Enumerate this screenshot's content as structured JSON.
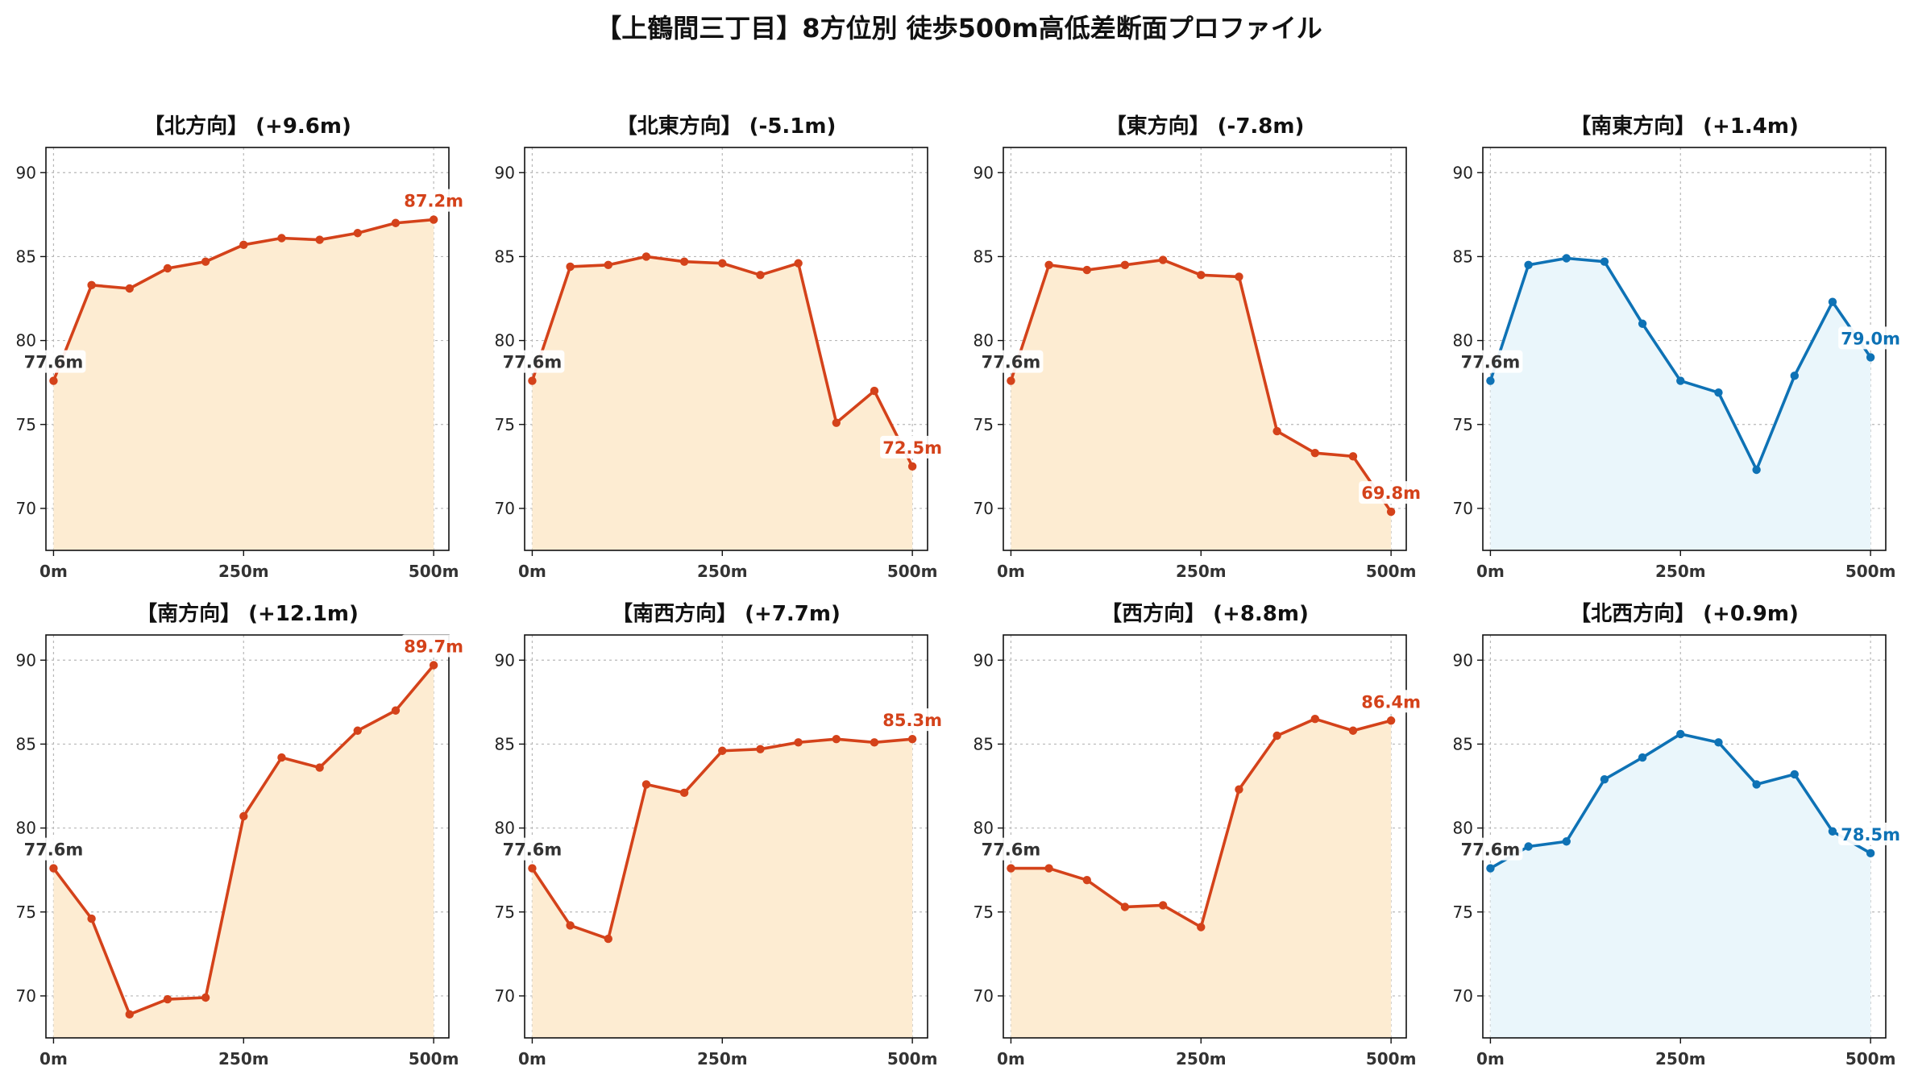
{
  "chart_data": {
    "type": "line",
    "title": "【上鶴間三丁目】8方位別 徒歩500m高低差断面プロファイル",
    "ylim": [
      67.5,
      91.5
    ],
    "yticks": [
      70,
      75,
      80,
      85,
      90
    ],
    "xlim": [
      -10,
      520
    ],
    "xticks": [
      0,
      250,
      500
    ],
    "xtick_labels": [
      "0m",
      "250m",
      "500m"
    ],
    "grid": true,
    "colors": {
      "up_line": "#d4421a",
      "up_fill": "#fdecd2",
      "down_line": "#0e72b5",
      "down_fill": "#eaf6fb",
      "start_label": "#333333"
    },
    "x": [
      0,
      50,
      100,
      150,
      200,
      250,
      300,
      350,
      400,
      450,
      500
    ],
    "panels": [
      {
        "title": "【北方向】 (+9.6m)",
        "style": "up",
        "values": [
          77.6,
          83.3,
          83.1,
          84.3,
          84.7,
          85.7,
          86.1,
          86.0,
          86.4,
          87.0,
          87.2
        ],
        "start_label": "77.6m",
        "end_label": "87.2m"
      },
      {
        "title": "【北東方向】 (-5.1m)",
        "style": "up",
        "values": [
          77.6,
          84.4,
          84.5,
          85.0,
          84.7,
          84.6,
          83.9,
          84.6,
          75.1,
          77.0,
          72.5
        ],
        "start_label": "77.6m",
        "end_label": "72.5m"
      },
      {
        "title": "【東方向】 (-7.8m)",
        "style": "up",
        "values": [
          77.6,
          84.5,
          84.2,
          84.5,
          84.8,
          83.9,
          83.8,
          74.6,
          73.3,
          73.1,
          69.8
        ],
        "start_label": "77.6m",
        "end_label": "69.8m"
      },
      {
        "title": "【南東方向】 (+1.4m)",
        "style": "down",
        "values": [
          77.6,
          84.5,
          84.9,
          84.7,
          81.0,
          77.6,
          76.9,
          72.3,
          77.9,
          82.3,
          79.0
        ],
        "start_label": "77.6m",
        "end_label": "79.0m"
      },
      {
        "title": "【南方向】 (+12.1m)",
        "style": "up",
        "values": [
          77.6,
          74.6,
          68.9,
          69.8,
          69.9,
          80.7,
          84.2,
          83.6,
          85.8,
          87.0,
          89.7
        ],
        "start_label": "77.6m",
        "end_label": "89.7m"
      },
      {
        "title": "【南西方向】 (+7.7m)",
        "style": "up",
        "values": [
          77.6,
          74.2,
          73.4,
          82.6,
          82.1,
          84.6,
          84.7,
          85.1,
          85.3,
          85.1,
          85.3
        ],
        "start_label": "77.6m",
        "end_label": "85.3m"
      },
      {
        "title": "【西方向】 (+8.8m)",
        "style": "up",
        "values": [
          77.6,
          77.6,
          76.9,
          75.3,
          75.4,
          74.1,
          82.3,
          85.5,
          86.5,
          85.8,
          86.4
        ],
        "start_label": "77.6m",
        "end_label": "86.4m"
      },
      {
        "title": "【北西方向】 (+0.9m)",
        "style": "down",
        "values": [
          77.6,
          78.9,
          79.2,
          82.9,
          84.2,
          85.6,
          85.1,
          82.6,
          83.2,
          79.8,
          78.5
        ],
        "start_label": "77.6m",
        "end_label": "78.5m"
      }
    ]
  }
}
